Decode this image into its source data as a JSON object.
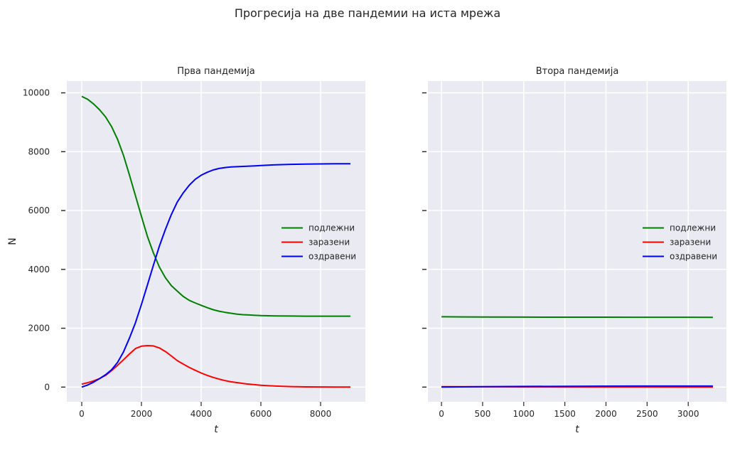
{
  "figure": {
    "suptitle": "Прогресија на две пандемии на иста мрежа"
  },
  "colors": {
    "background": "#eaeaf2",
    "grid": "#ffffff",
    "susceptible": "#008000",
    "infected": "#ff0000",
    "recovered": "#0000ff"
  },
  "chart_data": [
    {
      "type": "line",
      "title": "Прва пандемија",
      "xlabel": "t",
      "ylabel": "N",
      "xlim": [
        -500,
        9500
      ],
      "ylim": [
        -500,
        10400
      ],
      "xticks": [
        0,
        2000,
        4000,
        6000,
        8000
      ],
      "yticks": [
        0,
        2000,
        4000,
        6000,
        8000,
        10000
      ],
      "grid": true,
      "legend_position": "center-right",
      "series": [
        {
          "name": "подлежни",
          "color": "#008000",
          "x": [
            0,
            200,
            400,
            600,
            800,
            1000,
            1200,
            1400,
            1600,
            1800,
            2000,
            2200,
            2400,
            2600,
            2800,
            3000,
            3200,
            3400,
            3600,
            3800,
            4000,
            4200,
            4400,
            4600,
            4800,
            5000,
            5200,
            5400,
            5600,
            5800,
            6000,
            6500,
            7000,
            7500,
            8000,
            8500,
            9000
          ],
          "y": [
            9880,
            9780,
            9620,
            9420,
            9180,
            8850,
            8420,
            7870,
            7200,
            6500,
            5800,
            5120,
            4560,
            4080,
            3720,
            3450,
            3260,
            3080,
            2950,
            2860,
            2780,
            2700,
            2630,
            2580,
            2540,
            2510,
            2480,
            2460,
            2450,
            2440,
            2430,
            2420,
            2415,
            2410,
            2410,
            2410,
            2410
          ]
        },
        {
          "name": "заразени",
          "color": "#ff0000",
          "x": [
            0,
            200,
            400,
            600,
            800,
            1000,
            1200,
            1400,
            1600,
            1800,
            2000,
            2200,
            2400,
            2600,
            2800,
            3000,
            3200,
            3400,
            3600,
            3800,
            4000,
            4200,
            4400,
            4600,
            4800,
            5000,
            5500,
            6000,
            6500,
            7000,
            7500,
            8000,
            8500,
            9000
          ],
          "y": [
            100,
            150,
            210,
            290,
            400,
            560,
            740,
            930,
            1130,
            1310,
            1390,
            1410,
            1400,
            1330,
            1210,
            1060,
            900,
            780,
            670,
            570,
            480,
            400,
            330,
            270,
            220,
            180,
            110,
            60,
            35,
            18,
            8,
            4,
            2,
            0
          ]
        },
        {
          "name": "оздравени",
          "color": "#0000ff",
          "x": [
            0,
            200,
            400,
            600,
            800,
            1000,
            1200,
            1400,
            1600,
            1800,
            2000,
            2200,
            2400,
            2600,
            2800,
            3000,
            3200,
            3400,
            3600,
            3800,
            4000,
            4200,
            4400,
            4600,
            4800,
            5000,
            5200,
            5400,
            5600,
            5800,
            6000,
            6500,
            7000,
            7500,
            8000,
            8500,
            9000
          ],
          "y": [
            0,
            70,
            170,
            290,
            420,
            590,
            840,
            1200,
            1670,
            2190,
            2810,
            3470,
            4140,
            4790,
            5350,
            5860,
            6290,
            6600,
            6860,
            7060,
            7200,
            7300,
            7380,
            7430,
            7460,
            7480,
            7490,
            7500,
            7510,
            7520,
            7530,
            7555,
            7570,
            7580,
            7585,
            7590,
            7590
          ]
        }
      ]
    },
    {
      "type": "line",
      "title": "Втора пандемија",
      "xlabel": "t",
      "ylabel": "",
      "xlim": [
        -165,
        3465
      ],
      "ylim": [
        -500,
        10400
      ],
      "xticks": [
        0,
        500,
        1000,
        1500,
        2000,
        2500,
        3000
      ],
      "yticks": [
        0,
        2000,
        4000,
        6000,
        8000,
        10000
      ],
      "shared_y": true,
      "grid": true,
      "legend_position": "center-right",
      "series": [
        {
          "name": "подлежни",
          "color": "#008000",
          "x": [
            0,
            250,
            500,
            1000,
            1500,
            2000,
            2500,
            3000,
            3300
          ],
          "y": [
            2390,
            2385,
            2380,
            2378,
            2376,
            2375,
            2374,
            2373,
            2372
          ]
        },
        {
          "name": "заразени",
          "color": "#ff0000",
          "x": [
            0,
            500,
            1000,
            1500,
            2000,
            2500,
            3000,
            3300
          ],
          "y": [
            15,
            10,
            8,
            6,
            5,
            4,
            3,
            3
          ]
        },
        {
          "name": "оздравени",
          "color": "#0000ff",
          "x": [
            0,
            250,
            500,
            1000,
            1500,
            2000,
            2500,
            3000,
            3300
          ],
          "y": [
            0,
            8,
            14,
            22,
            28,
            32,
            34,
            35,
            35
          ]
        }
      ]
    }
  ]
}
